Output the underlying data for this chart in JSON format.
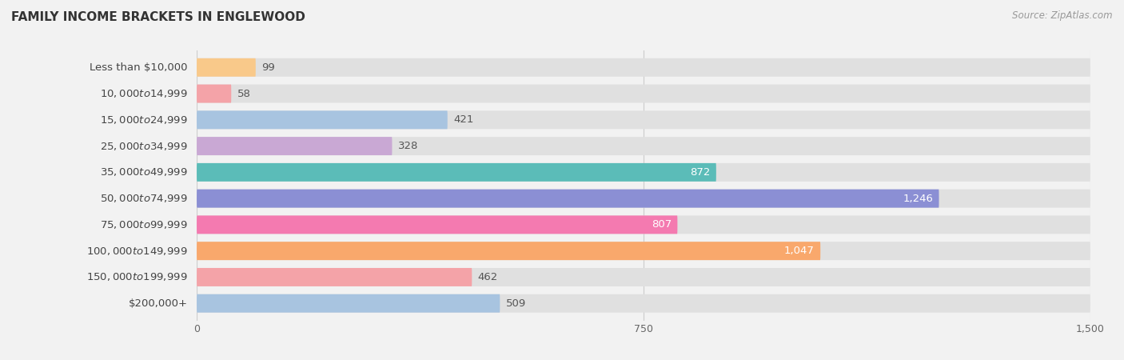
{
  "title": "FAMILY INCOME BRACKETS IN ENGLEWOOD",
  "source": "Source: ZipAtlas.com",
  "categories": [
    "Less than $10,000",
    "$10,000 to $14,999",
    "$15,000 to $24,999",
    "$25,000 to $34,999",
    "$35,000 to $49,999",
    "$50,000 to $74,999",
    "$75,000 to $99,999",
    "$100,000 to $149,999",
    "$150,000 to $199,999",
    "$200,000+"
  ],
  "values": [
    99,
    58,
    421,
    328,
    872,
    1246,
    807,
    1047,
    462,
    509
  ],
  "bar_colors": [
    "#f9c98a",
    "#f4a3a8",
    "#a8c4e0",
    "#c9a8d4",
    "#5bbcb8",
    "#8b8fd4",
    "#f47ab0",
    "#f9a86c",
    "#f4a3a8",
    "#a8c4e0"
  ],
  "xlim": [
    0,
    1500
  ],
  "xticks": [
    0,
    750,
    1500
  ],
  "background_color": "#f2f2f2",
  "bar_bg_color": "#e0e0e0",
  "label_bg_color": "#ffffff",
  "title_fontsize": 11,
  "label_fontsize": 9.5,
  "tick_fontsize": 9,
  "source_fontsize": 8.5,
  "bar_height": 0.7,
  "value_threshold": 600
}
